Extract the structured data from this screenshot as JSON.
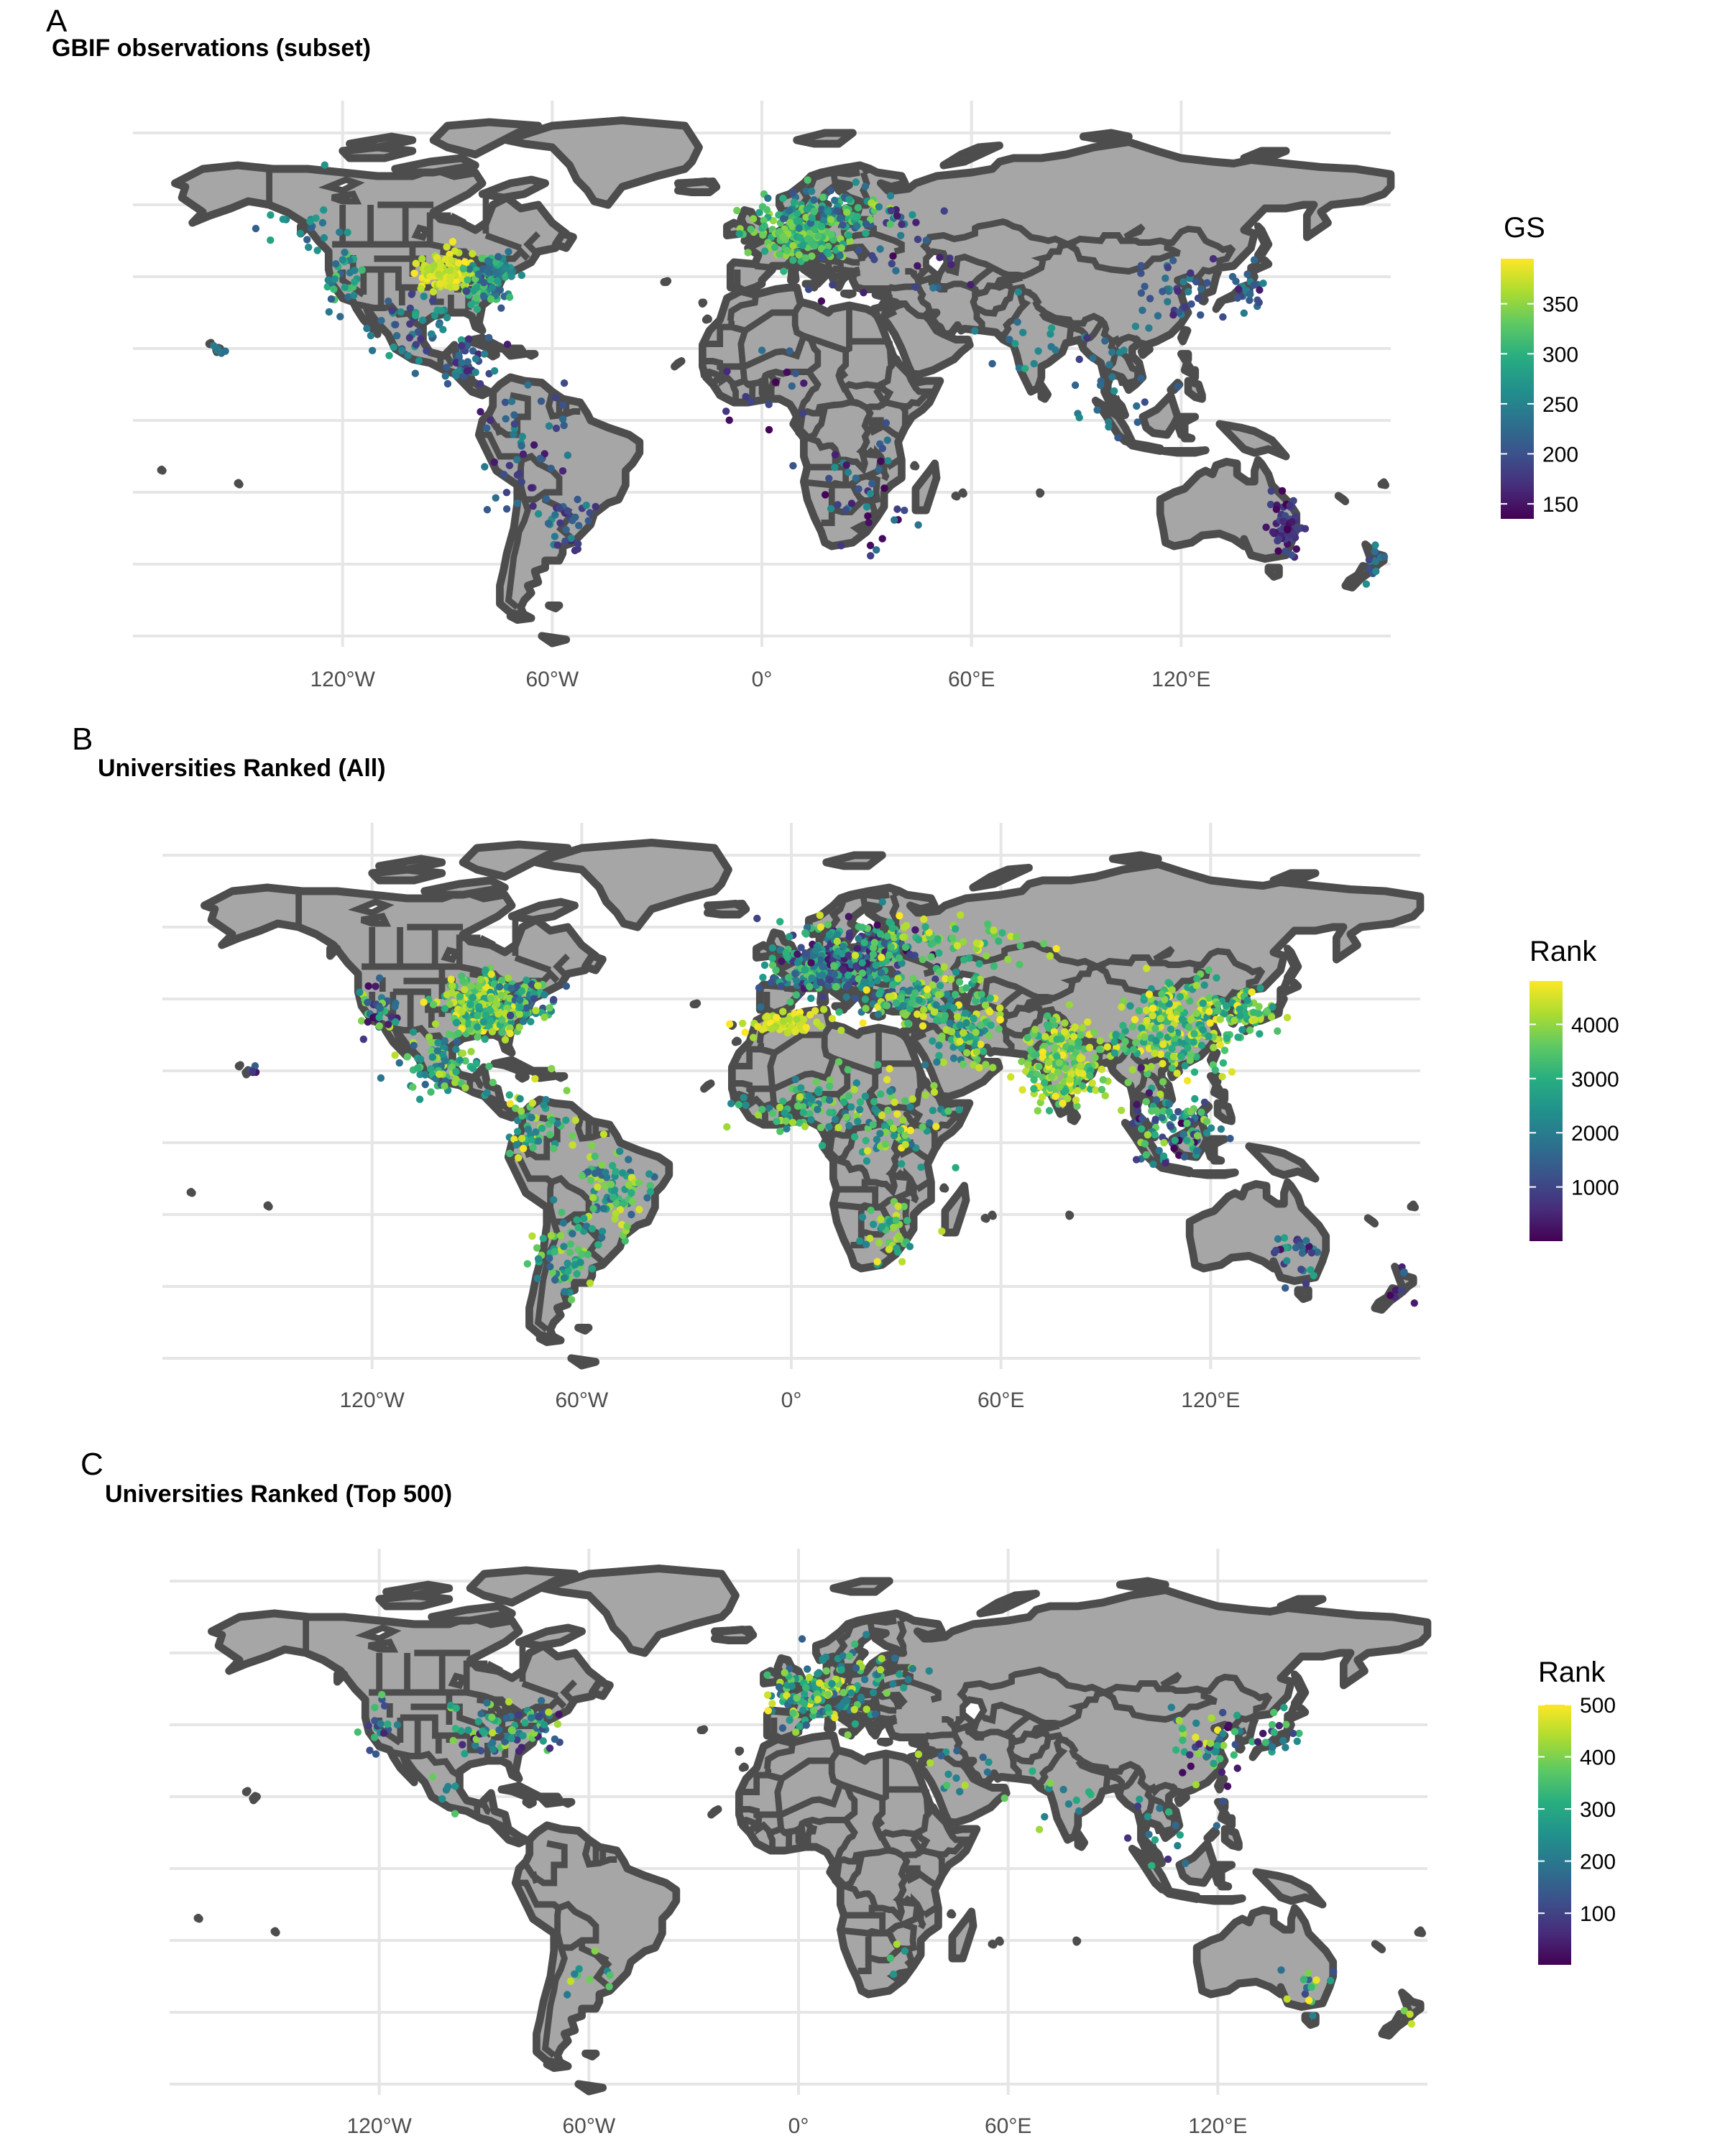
{
  "panels": [
    {
      "letter": "A",
      "title": "GBIF observations (subset)",
      "x_ticks": [
        "120°W",
        "60°W",
        "0°",
        "60°E",
        "120°E"
      ],
      "legend": {
        "title": "GS",
        "min": 135,
        "max": 395,
        "ticks": [
          "150",
          "200",
          "250",
          "300",
          "350"
        ],
        "tick_values": [
          150,
          200,
          250,
          300,
          350
        ]
      }
    },
    {
      "letter": "B",
      "title": "Universities Ranked (All)",
      "x_ticks": [
        "120°W",
        "60°W",
        "0°",
        "60°E",
        "120°E"
      ],
      "legend": {
        "title": "Rank",
        "min": 1,
        "max": 4800,
        "ticks": [
          "1000",
          "2000",
          "3000",
          "4000"
        ],
        "tick_values": [
          1000,
          2000,
          3000,
          4000
        ]
      }
    },
    {
      "letter": "C",
      "title": "Universities Ranked (Top 500)",
      "x_ticks": [
        "120°W",
        "60°W",
        "0°",
        "60°E",
        "120°E"
      ],
      "legend": {
        "title": "Rank",
        "min": 1,
        "max": 500,
        "ticks": [
          "100",
          "200",
          "300",
          "400",
          "500"
        ],
        "tick_values": [
          100,
          200,
          300,
          400,
          500
        ]
      }
    }
  ],
  "map": {
    "land_color": "#a6a6a6",
    "outline_color": "#4d4d4d",
    "grid_color": "#e6e6e6",
    "colorscale": "viridis",
    "viridis": [
      "#440154",
      "#472d7b",
      "#3b528b",
      "#2c728e",
      "#21918c",
      "#28ae80",
      "#5ec962",
      "#addc30",
      "#fde725"
    ]
  }
}
